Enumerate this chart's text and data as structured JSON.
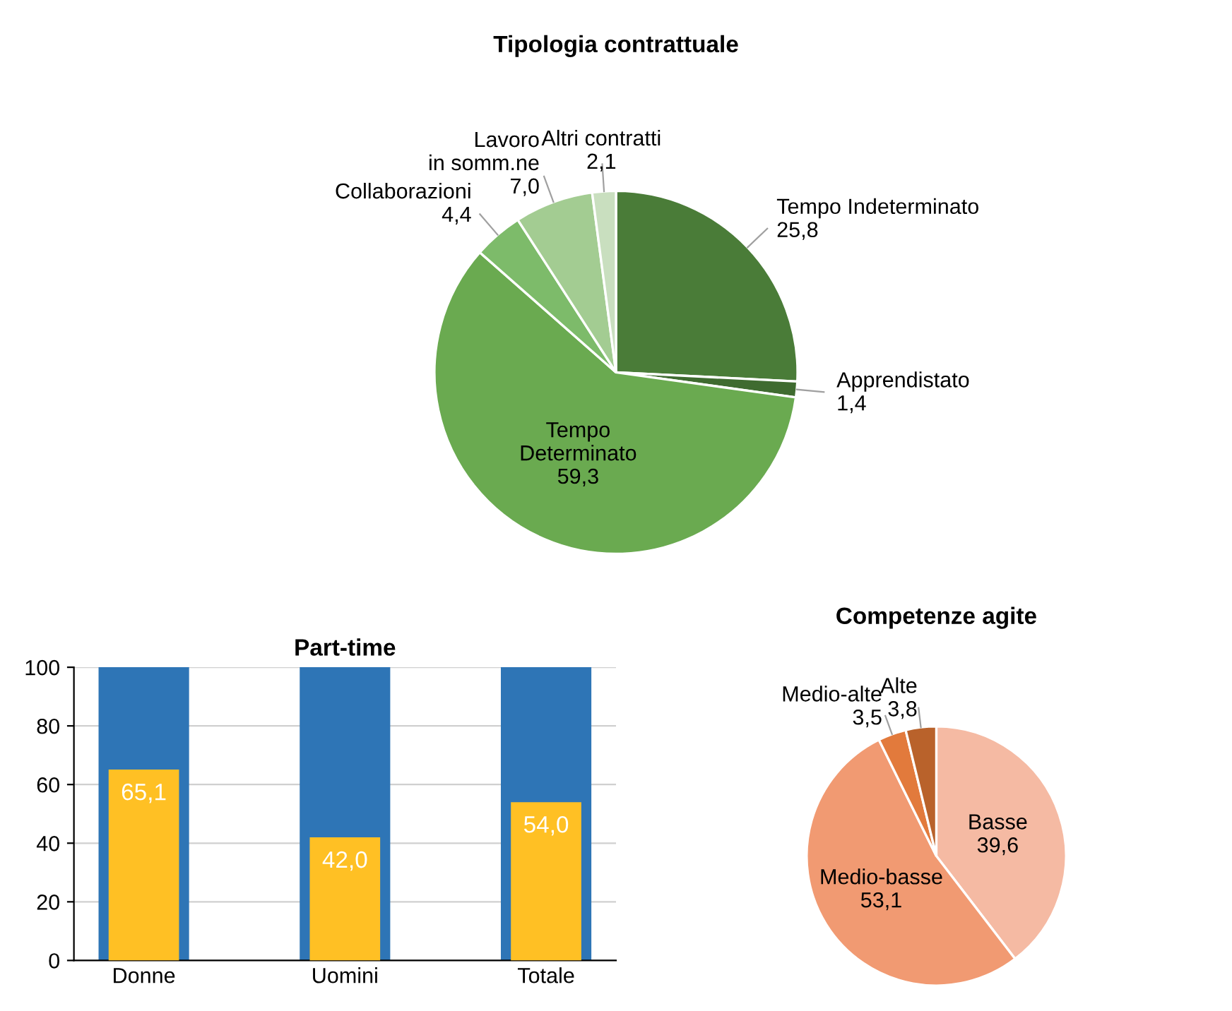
{
  "chart_data": [
    {
      "type": "pie",
      "title": "Tipologia contrattuale",
      "categories": [
        "Tempo Indeterminato",
        "Apprendistato",
        "Tempo\nDeterminato",
        "Collaborazioni",
        "Lavoro\nin somm.ne",
        "Altri contratti"
      ],
      "values": [
        25.8,
        1.4,
        59.3,
        4.4,
        7.0,
        2.1
      ],
      "value_labels": [
        "25,8",
        "1,4",
        "59,3",
        "4,4",
        "7,0",
        "2,1"
      ],
      "colors": [
        "#4a7c38",
        "#3f6b30",
        "#6aaa50",
        "#7dbb6a",
        "#a3cc92",
        "#c9dfbf"
      ]
    },
    {
      "type": "bar",
      "title": "Part-time",
      "categories": [
        "Donne",
        "Uomini",
        "Totale"
      ],
      "series": [
        {
          "color": "#2e75b6",
          "values": [
            100,
            100,
            100
          ]
        },
        {
          "color": "#ffc024",
          "values": [
            65.1,
            42.0,
            54.0
          ],
          "value_labels": [
            "65,1",
            "42,0",
            "54,0"
          ]
        }
      ],
      "ylim": [
        0,
        100
      ],
      "yticks": [
        0,
        20,
        40,
        60,
        80,
        100
      ],
      "grid": "y"
    },
    {
      "type": "pie",
      "title": "Competenze agite",
      "categories": [
        "Basse",
        "Medio-basse",
        "Medio-alte",
        "Alte"
      ],
      "values": [
        39.6,
        53.1,
        3.5,
        3.8
      ],
      "value_labels": [
        "39,6",
        "53,1",
        "3,5",
        "3,8"
      ],
      "colors": [
        "#f5baa3",
        "#f19a72",
        "#e27a3c",
        "#b9622b"
      ]
    }
  ]
}
